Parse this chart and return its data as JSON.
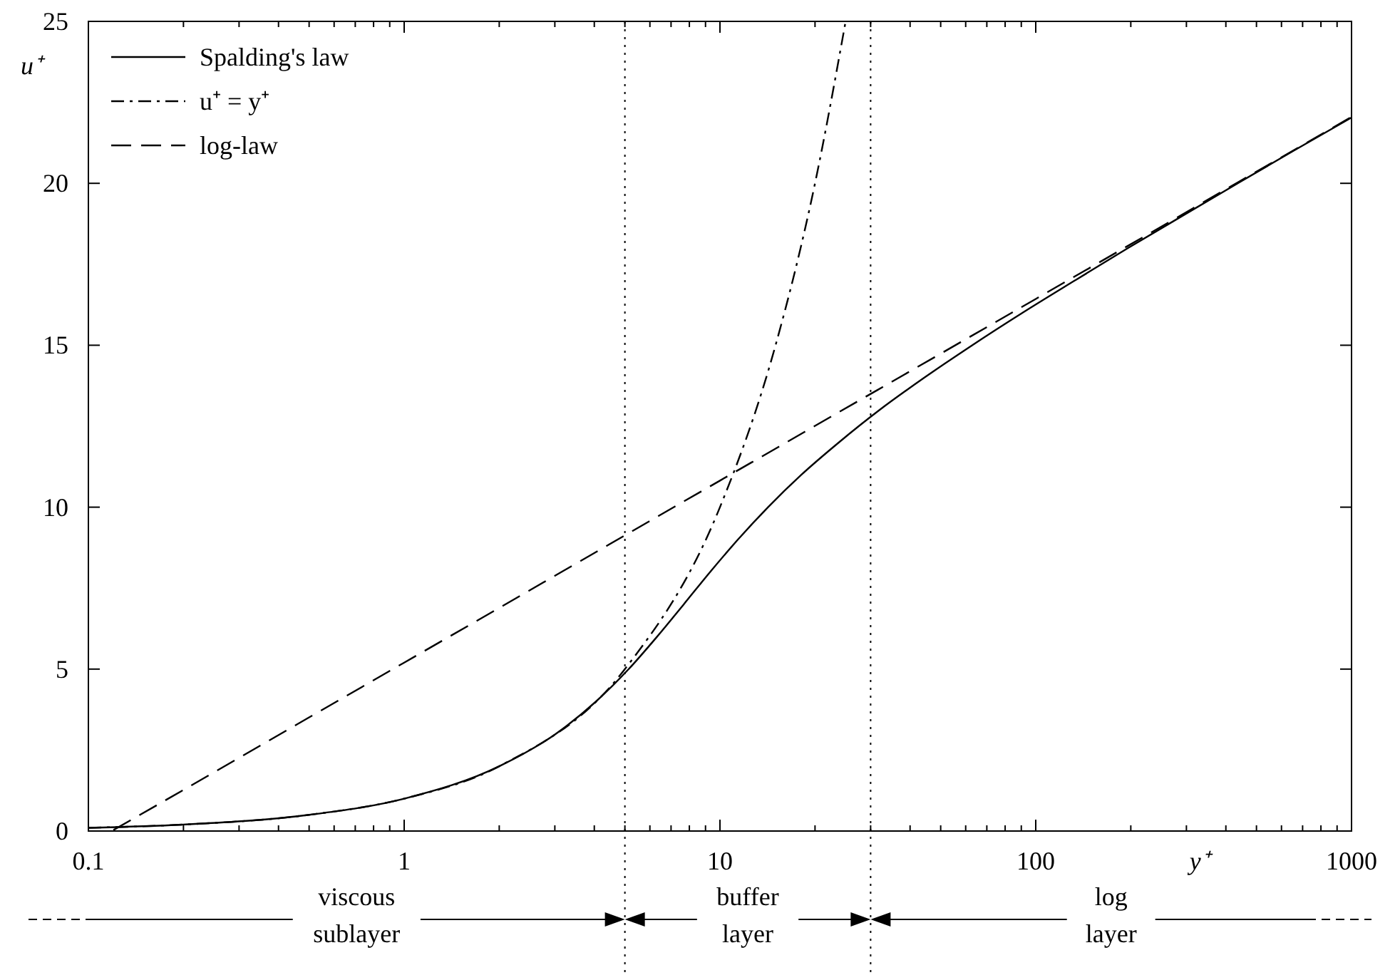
{
  "chart_data": {
    "type": "line",
    "xlabel": "y⁺",
    "ylabel": "u⁺",
    "log": "x",
    "xlim": [
      0.1,
      1000
    ],
    "ylim": [
      0,
      25
    ],
    "xticks": [
      0.1,
      {
        "value": 0.2,
        "label": null
      },
      {
        "value": 0.3,
        "label": null
      },
      {
        "value": 0.4,
        "label": null
      },
      {
        "value": 0.5,
        "label": null
      },
      {
        "value": 0.6,
        "label": null
      },
      {
        "value": 0.7,
        "label": null
      },
      {
        "value": 0.8,
        "label": null
      },
      {
        "value": 0.9,
        "label": null
      },
      1,
      {
        "value": 2,
        "label": null
      },
      {
        "value": 3,
        "label": null
      },
      {
        "value": 4,
        "label": null
      },
      {
        "value": 5,
        "label": null
      },
      {
        "value": 6,
        "label": null
      },
      {
        "value": 7,
        "label": null
      },
      {
        "value": 8,
        "label": null
      },
      {
        "value": 9,
        "label": null
      },
      10,
      {
        "value": 20,
        "label": null
      },
      {
        "value": 30,
        "label": null
      },
      {
        "value": 40,
        "label": null
      },
      {
        "value": 50,
        "label": null
      },
      {
        "value": 60,
        "label": null
      },
      {
        "value": 70,
        "label": null
      },
      {
        "value": 80,
        "label": null
      },
      {
        "value": 90,
        "label": null
      },
      100,
      {
        "value": 200,
        "label": null
      },
      {
        "value": 300,
        "label": null
      },
      {
        "value": 400,
        "label": null
      },
      {
        "value": 500,
        "label": null
      },
      {
        "value": 600,
        "label": null
      },
      {
        "value": 700,
        "label": null
      },
      {
        "value": 800,
        "label": null
      },
      {
        "value": 900,
        "label": null
      },
      1000
    ],
    "yticks": [
      0,
      5,
      10,
      15,
      20,
      25
    ],
    "legend": "top left",
    "series": [
      {
        "name": "Spalding's law",
        "color": "#000000",
        "line_style": "solid",
        "x": [
          0.1,
          0.2,
          0.5,
          1,
          2,
          3.02,
          4.05,
          5.14,
          6.32,
          7.68,
          9.31,
          11.4,
          14.2,
          18.1,
          23.8,
          32,
          44.4,
          62.9,
          90.7,
          133,
          196,
          292,
          436,
          654,
          1000
        ],
        "values": [
          0.1,
          0.2,
          0.5,
          1,
          2,
          3,
          4,
          5,
          6,
          7,
          8,
          9,
          10,
          11,
          12,
          13,
          14,
          15,
          16,
          17,
          18,
          19,
          20,
          21,
          22.03
        ]
      },
      {
        "name": "u⁺ = y⁺",
        "color": "#000000",
        "line_style": "dashdot",
        "x": [
          0.1,
          0.2,
          0.5,
          1,
          2,
          5,
          10,
          15,
          20,
          25
        ],
        "values": [
          0.1,
          0.2,
          0.5,
          1,
          2,
          5,
          10,
          15,
          20,
          25
        ]
      },
      {
        "name": "log-law",
        "color": "#000000",
        "line_style": "dashed",
        "x": [
          0.12,
          0.2,
          0.5,
          1,
          2,
          5,
          10,
          20,
          50,
          100,
          200,
          500,
          1000
        ],
        "values": [
          0.03,
          1.27,
          3.51,
          5.2,
          6.89,
          9.13,
          10.82,
          12.51,
          14.74,
          16.43,
          18.12,
          20.36,
          22.05
        ]
      }
    ],
    "ref_lines": [
      {
        "axis": "x",
        "value": 5,
        "line_style": "dotted",
        "color": "#000000"
      },
      {
        "axis": "x",
        "value": 30,
        "line_style": "dotted",
        "color": "#000000"
      }
    ],
    "annotations": [
      "viscous sublayer",
      "buffer layer",
      "log layer"
    ]
  }
}
